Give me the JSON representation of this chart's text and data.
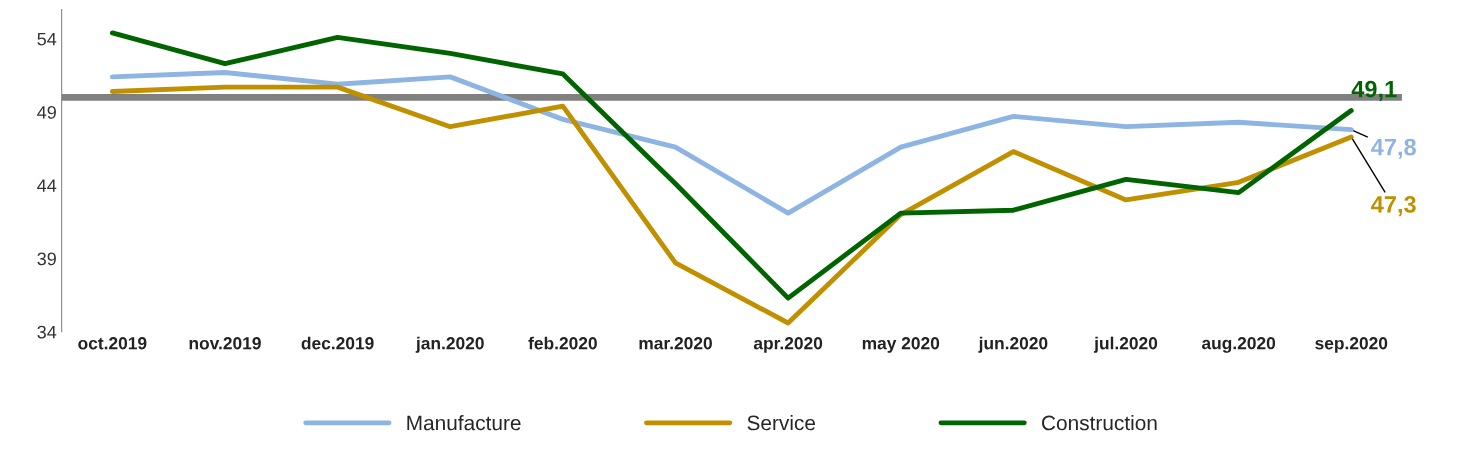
{
  "chart_data": {
    "type": "line",
    "categories": [
      "oct.2019",
      "nov.2019",
      "dec.2019",
      "jan.2020",
      "feb.2020",
      "mar.2020",
      "apr.2020",
      "may 2020",
      "jun.2020",
      "jul.2020",
      "aug.2020",
      "sep.2020"
    ],
    "series": [
      {
        "name": "Manufacture",
        "color": "#8db4e2",
        "values": [
          51.4,
          51.7,
          50.9,
          51.4,
          48.5,
          46.6,
          42.1,
          46.6,
          48.7,
          48.0,
          48.3,
          47.8
        ],
        "value_labels": [
          null,
          null,
          null,
          null,
          null,
          null,
          null,
          null,
          null,
          null,
          null,
          "47,8"
        ]
      },
      {
        "name": "Service",
        "color": "#c09000",
        "values": [
          50.4,
          50.7,
          50.7,
          48.0,
          49.4,
          38.7,
          34.6,
          42.0,
          46.3,
          43.0,
          44.2,
          47.3
        ],
        "value_labels": [
          null,
          null,
          null,
          null,
          null,
          null,
          null,
          null,
          null,
          null,
          null,
          "47,3"
        ]
      },
      {
        "name": "Construction",
        "color": "#006400",
        "values": [
          54.4,
          52.3,
          54.1,
          53.0,
          51.6,
          44.1,
          36.3,
          42.1,
          42.3,
          44.4,
          43.5,
          49.1
        ],
        "value_labels": [
          null,
          null,
          null,
          null,
          null,
          null,
          null,
          null,
          null,
          null,
          null,
          "49,1"
        ]
      }
    ],
    "ylim": [
      34,
      56
    ],
    "yticks": [
      34,
      39,
      44,
      49,
      54
    ],
    "ref_lines": [
      {
        "axis": "y",
        "value": 50,
        "color": "#808080"
      }
    ],
    "grid": false,
    "legend": "bottom",
    "marker": "none",
    "line_style": "solid"
  }
}
